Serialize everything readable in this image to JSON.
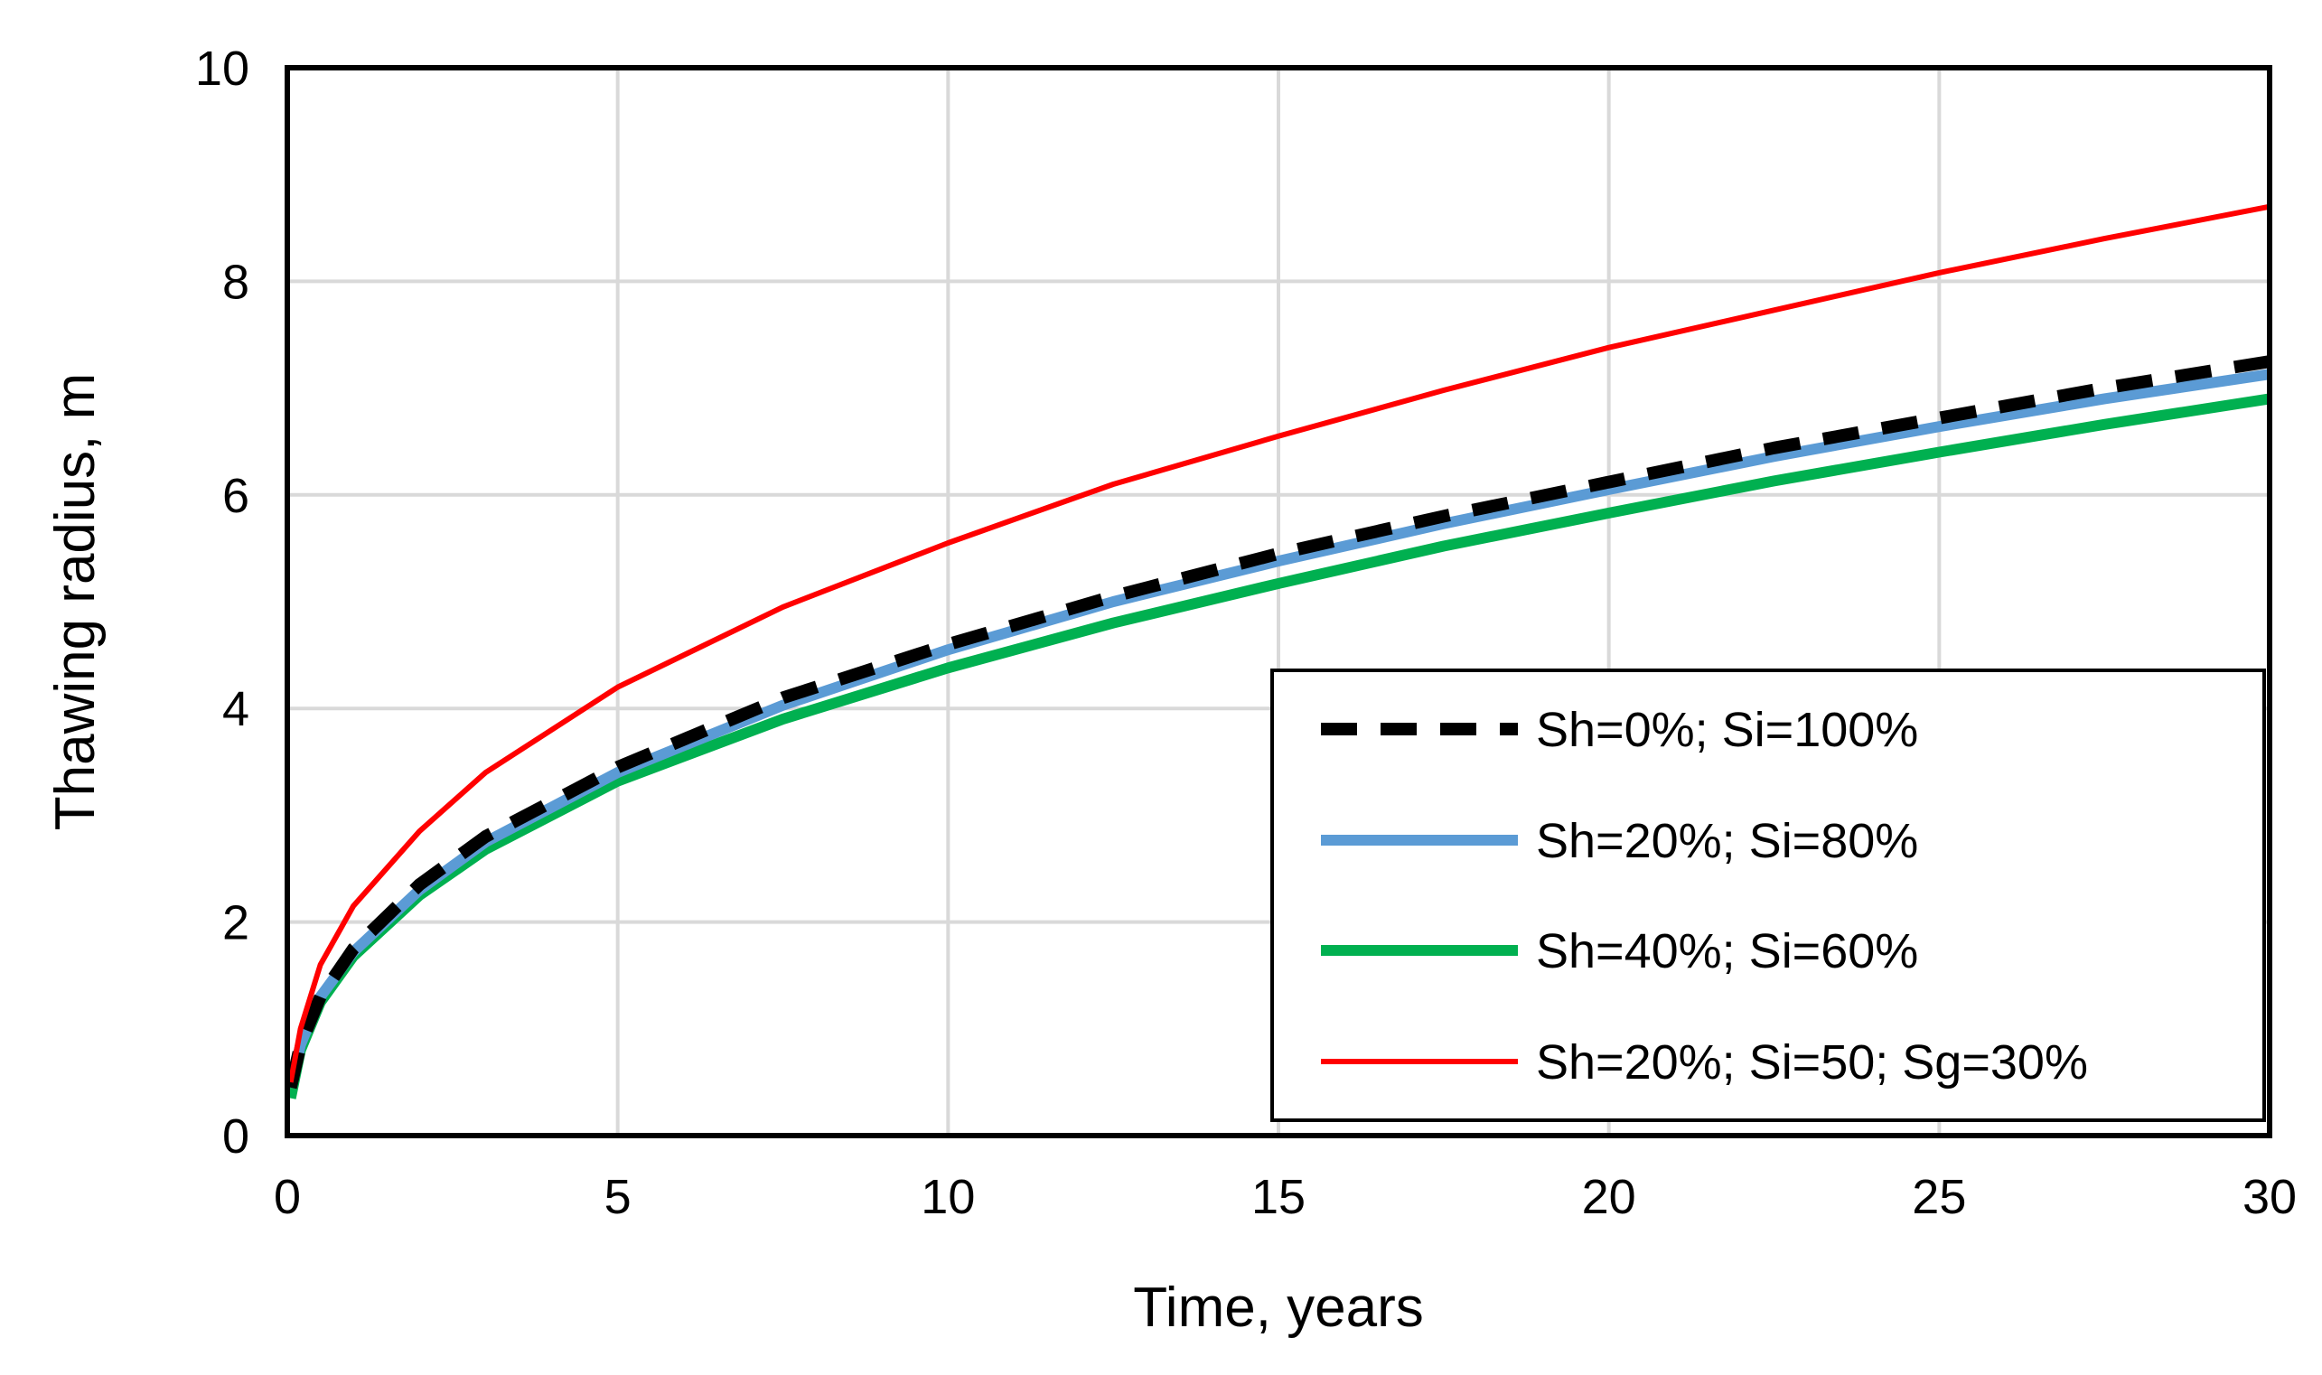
{
  "chart_data": {
    "type": "line",
    "title": "",
    "xlabel": "Time, years",
    "ylabel": "Thawing radius, m",
    "xlim": [
      0,
      30
    ],
    "ylim": [
      0,
      10
    ],
    "x_ticks": [
      "0",
      "5",
      "10",
      "15",
      "20",
      "25",
      "30"
    ],
    "y_ticks": [
      "0",
      "2",
      "4",
      "6",
      "8",
      "10"
    ],
    "x_tick_values": [
      0,
      5,
      10,
      15,
      20,
      25,
      30
    ],
    "y_tick_values": [
      0,
      2,
      4,
      6,
      8,
      10
    ],
    "grid": true,
    "legend_position": "bottom-right",
    "series": [
      {
        "name": "Sh=0%; Si=100%",
        "color": "#000000",
        "style": "dashed",
        "x": [
          0.05,
          0.2,
          0.5,
          1,
          2,
          3,
          5,
          7.5,
          10,
          12.5,
          15,
          17.5,
          20,
          22.5,
          25,
          27.5,
          30
        ],
        "y": [
          0.45,
          0.85,
          1.3,
          1.75,
          2.35,
          2.8,
          3.45,
          4.1,
          4.6,
          5.05,
          5.45,
          5.8,
          6.12,
          6.44,
          6.72,
          7.0,
          7.25
        ]
      },
      {
        "name": "Sh=20%; Si=80%",
        "color": "#5B9BD5",
        "style": "solid",
        "x": [
          0.05,
          0.2,
          0.5,
          1,
          2,
          3,
          5,
          7.5,
          10,
          12.5,
          15,
          17.5,
          20,
          22.5,
          25,
          27.5,
          30
        ],
        "y": [
          0.45,
          0.85,
          1.3,
          1.72,
          2.3,
          2.75,
          3.4,
          4.03,
          4.55,
          5.0,
          5.38,
          5.73,
          6.05,
          6.36,
          6.64,
          6.9,
          7.13
        ]
      },
      {
        "name": "Sh=40%; Si=60%",
        "color": "#00B050",
        "style": "solid",
        "x": [
          0.05,
          0.2,
          0.5,
          1,
          2,
          3,
          5,
          7.5,
          10,
          12.5,
          15,
          17.5,
          20,
          22.5,
          25,
          27.5,
          30
        ],
        "y": [
          0.35,
          0.8,
          1.25,
          1.68,
          2.25,
          2.68,
          3.32,
          3.9,
          4.38,
          4.8,
          5.17,
          5.52,
          5.83,
          6.13,
          6.4,
          6.66,
          6.9
        ]
      },
      {
        "name": "Sh=20%; Si=50; Sg=30%",
        "color": "#FF0000",
        "style": "solid",
        "x": [
          0.05,
          0.2,
          0.5,
          1,
          2,
          3,
          5,
          7.5,
          10,
          12.5,
          15,
          17.5,
          20,
          22.5,
          25,
          27.5,
          30
        ],
        "y": [
          0.5,
          1.0,
          1.6,
          2.15,
          2.85,
          3.4,
          4.2,
          4.95,
          5.55,
          6.1,
          6.55,
          6.98,
          7.38,
          7.73,
          8.08,
          8.4,
          8.7
        ]
      }
    ]
  }
}
